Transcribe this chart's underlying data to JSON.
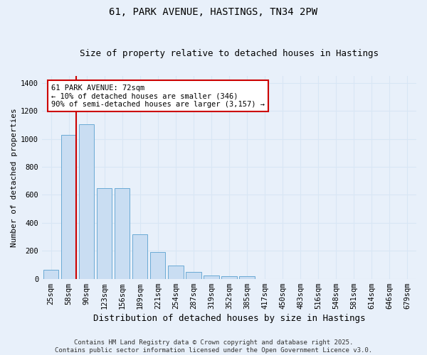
{
  "title1": "61, PARK AVENUE, HASTINGS, TN34 2PW",
  "title2": "Size of property relative to detached houses in Hastings",
  "xlabel": "Distribution of detached houses by size in Hastings",
  "ylabel": "Number of detached properties",
  "categories": [
    "25sqm",
    "58sqm",
    "90sqm",
    "123sqm",
    "156sqm",
    "189sqm",
    "221sqm",
    "254sqm",
    "287sqm",
    "319sqm",
    "352sqm",
    "385sqm",
    "417sqm",
    "450sqm",
    "483sqm",
    "516sqm",
    "548sqm",
    "581sqm",
    "614sqm",
    "646sqm",
    "679sqm"
  ],
  "values": [
    65,
    1030,
    1105,
    648,
    650,
    320,
    190,
    95,
    48,
    25,
    20,
    17,
    0,
    0,
    0,
    0,
    0,
    0,
    0,
    0,
    0
  ],
  "bar_color": "#c9ddf2",
  "bar_edge_color": "#6aaad4",
  "vline_x": 1.425,
  "annotation_text": "61 PARK AVENUE: 72sqm\n← 10% of detached houses are smaller (346)\n90% of semi-detached houses are larger (3,157) →",
  "annotation_box_color": "#ffffff",
  "annotation_box_edge": "#cc0000",
  "vline_color": "#cc0000",
  "grid_color": "#d8e6f5",
  "bg_color": "#e8f0fa",
  "footer1": "Contains HM Land Registry data © Crown copyright and database right 2025.",
  "footer2": "Contains public sector information licensed under the Open Government Licence v3.0.",
  "ylim": [
    0,
    1450
  ],
  "yticks": [
    0,
    200,
    400,
    600,
    800,
    1000,
    1200,
    1400
  ],
  "title1_fontsize": 10,
  "title2_fontsize": 9,
  "ylabel_fontsize": 8,
  "xlabel_fontsize": 9,
  "tick_fontsize": 7.5,
  "footer_fontsize": 6.5,
  "annot_fontsize": 7.5
}
